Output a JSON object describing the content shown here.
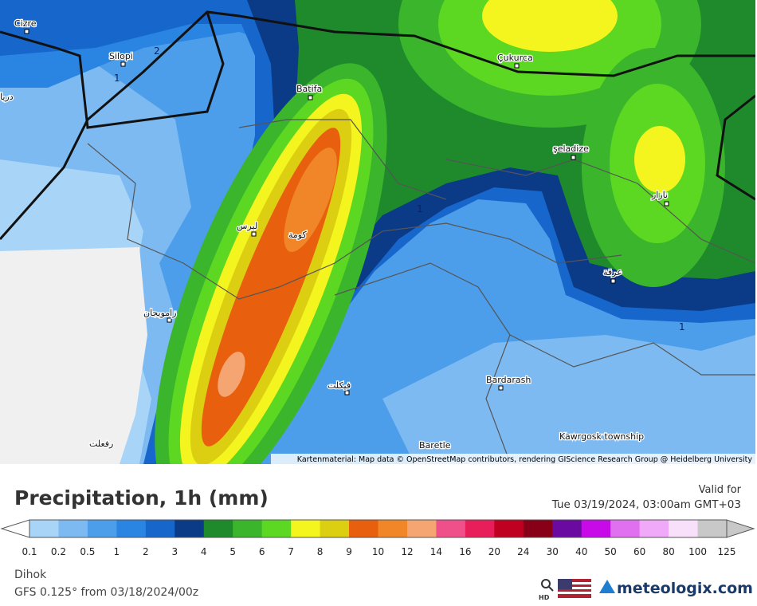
{
  "map": {
    "places": [
      "Cizre",
      "Silopi",
      "Batifa",
      "Çukurca",
      "şeladize",
      "دريا",
      "ليرس",
      "كومة",
      "نازار",
      "زامويجان",
      "عرقة",
      "فيكلت",
      "Bardarash",
      "رفعلت",
      "Baretle",
      "Kawrgosk township"
    ],
    "contour_labels": [
      "2",
      "1",
      "1",
      "1"
    ],
    "attribution": "Kartenmaterial: Map data © OpenStreetMap contributors, rendering GIScience Research Group @ Heidelberg University"
  },
  "legend": {
    "title": "Precipitation, 1h (mm)",
    "valid_label": "Valid for",
    "valid_time": "Tue 03/19/2024, 03:00am GMT+03",
    "ticks": [
      "0.1",
      "0.2",
      "0.5",
      "1",
      "2",
      "3",
      "4",
      "5",
      "6",
      "7",
      "8",
      "9",
      "10",
      "12",
      "14",
      "16",
      "20",
      "24",
      "30",
      "40",
      "50",
      "60",
      "80",
      "100",
      "125"
    ],
    "colors": [
      "#a8d4f7",
      "#7dbaf1",
      "#4c9eea",
      "#2a84e2",
      "#1766cc",
      "#0b3a86",
      "#1f8a2c",
      "#3bb52c",
      "#5cd822",
      "#f4f41e",
      "#dccf12",
      "#e8600e",
      "#f08628",
      "#f5a572",
      "#f0508a",
      "#e81e5a",
      "#c00020",
      "#880018",
      "#6a0aa0",
      "#c80ae8",
      "#e070f0",
      "#f0a8f8",
      "#f8e0fa",
      "#c8c8c8"
    ]
  },
  "footer": {
    "location": "Dihok",
    "model": "GFS 0.125° from 03/18/2024/00z",
    "hd": "HD",
    "brand": "meteologix.com"
  }
}
